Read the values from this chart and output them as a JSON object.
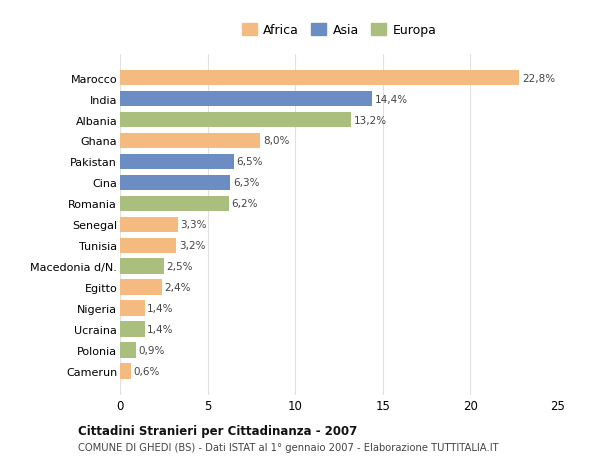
{
  "countries": [
    "Camerun",
    "Polonia",
    "Ucraina",
    "Nigeria",
    "Egitto",
    "Macedonia d/N.",
    "Tunisia",
    "Senegal",
    "Romania",
    "Cina",
    "Pakistan",
    "Ghana",
    "Albania",
    "India",
    "Marocco"
  ],
  "values": [
    0.6,
    0.9,
    1.4,
    1.4,
    2.4,
    2.5,
    3.2,
    3.3,
    6.2,
    6.3,
    6.5,
    8.0,
    13.2,
    14.4,
    22.8
  ],
  "labels": [
    "0,6%",
    "0,9%",
    "1,4%",
    "1,4%",
    "2,4%",
    "2,5%",
    "3,2%",
    "3,3%",
    "6,2%",
    "6,3%",
    "6,5%",
    "8,0%",
    "13,2%",
    "14,4%",
    "22,8%"
  ],
  "continents": [
    "Africa",
    "Europa",
    "Europa",
    "Africa",
    "Africa",
    "Europa",
    "Africa",
    "Africa",
    "Europa",
    "Asia",
    "Asia",
    "Africa",
    "Europa",
    "Asia",
    "Africa"
  ],
  "colors": {
    "Africa": "#F5BA80",
    "Asia": "#6B8DC4",
    "Europa": "#AABF7E"
  },
  "title_bold": "Cittadini Stranieri per Cittadinanza - 2007",
  "subtitle": "COMUNE DI GHEDI (BS) - Dati ISTAT al 1° gennaio 2007 - Elaborazione TUTTITALIA.IT",
  "xlim": [
    0,
    25
  ],
  "xticks": [
    0,
    5,
    10,
    15,
    20,
    25
  ],
  "background_color": "#ffffff",
  "plot_bg_color": "#ffffff",
  "grid_color": "#e0e0e0"
}
